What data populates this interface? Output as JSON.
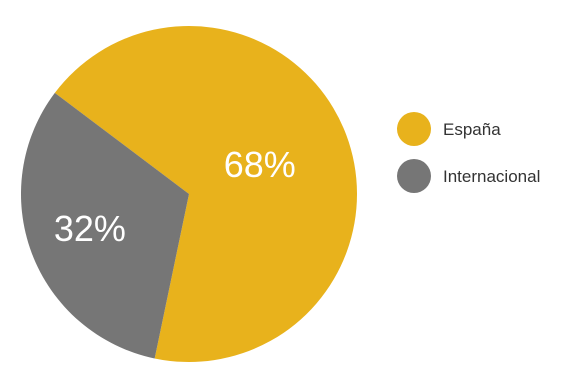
{
  "chart_data": {
    "type": "pie",
    "title": "",
    "legend_position": "right",
    "slices": [
      {
        "label": "España",
        "value": 68,
        "value_label": "68%",
        "color": "#E8B21C"
      },
      {
        "label": "Internacional",
        "value": 32,
        "value_label": "32%",
        "color": "#767676"
      }
    ]
  }
}
